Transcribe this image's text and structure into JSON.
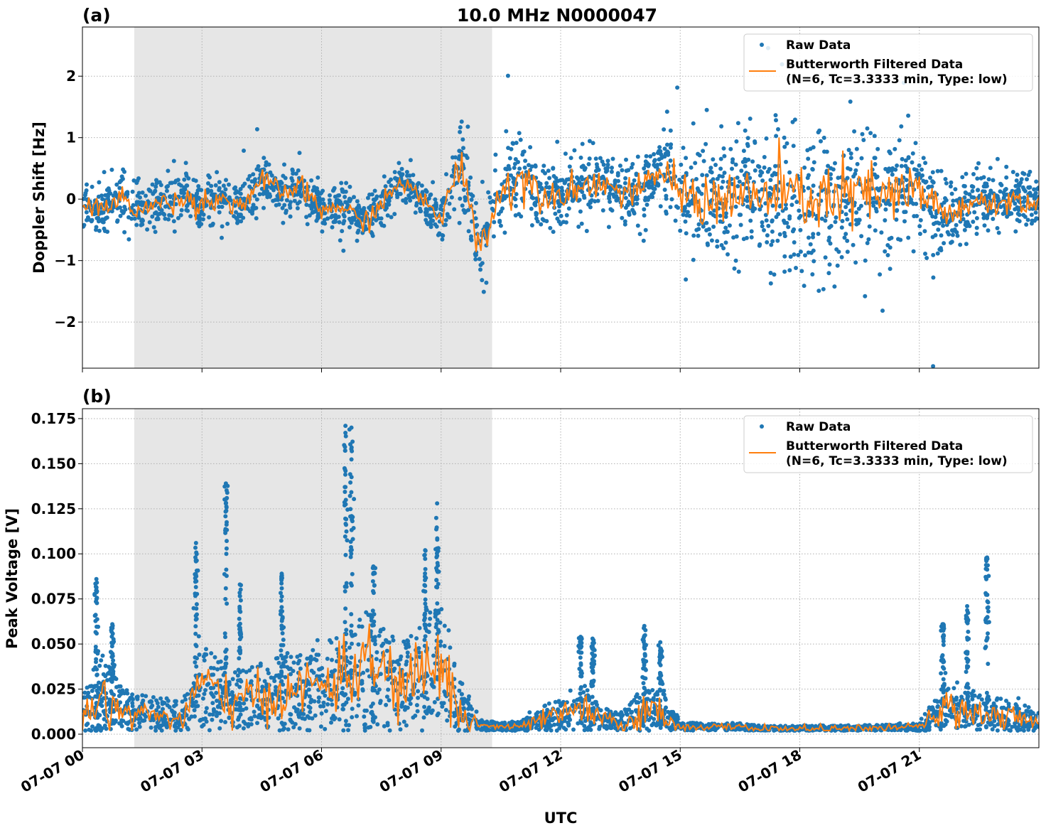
{
  "title": "10.0 MHz N0000047",
  "xlabel": "UTC",
  "x_tick_labels": [
    "07-07 00",
    "07-07 03",
    "07-07 06",
    "07-07 09",
    "07-07 12",
    "07-07 15",
    "07-07 18",
    "07-07 21"
  ],
  "colors": {
    "raw": "#1f77b4",
    "filtered": "#ff7f0e",
    "shade": "#e6e6e6"
  },
  "chart_data": [
    {
      "type": "scatter",
      "panel_label": "(a)",
      "ylabel": "Doppler Shift [Hz]",
      "x_unit": "hours UTC on 07-07",
      "xlim": [
        0,
        24
      ],
      "ylim": [
        -2.75,
        2.8
      ],
      "y_ticks": [
        -2,
        -1,
        0,
        1,
        2
      ],
      "y_tick_labels": [
        "−2",
        "−1",
        "0",
        "1",
        "2"
      ],
      "grid": true,
      "legend_position": "top-right",
      "shaded_interval": [
        1.3,
        10.28
      ],
      "x": [
        0,
        0.5,
        1,
        1.5,
        2,
        2.5,
        3,
        3.5,
        4,
        4.5,
        5,
        5.5,
        6,
        6.5,
        7,
        7.5,
        8,
        8.5,
        9,
        9.5,
        10,
        10.5,
        11,
        11.5,
        12,
        12.5,
        13,
        13.5,
        14,
        14.5,
        15,
        15.5,
        16,
        16.5,
        17,
        17.5,
        18,
        18.5,
        19,
        19.5,
        20,
        20.5,
        21,
        21.5,
        22,
        22.5,
        23,
        23.5,
        24
      ],
      "series": [
        {
          "name": "Butterworth Filtered Data\n(N=6, Tc=3.3333 min, Type: low)",
          "label_line1": "Butterworth Filtered Data",
          "label_line2": "(N=6, Tc=3.3333 min, Type: low)",
          "kind": "line",
          "values": [
            -0.1,
            -0.15,
            0.0,
            -0.2,
            -0.05,
            0.0,
            -0.05,
            0.0,
            -0.1,
            0.3,
            0.1,
            0.2,
            -0.2,
            -0.1,
            -0.4,
            -0.1,
            0.3,
            0.0,
            -0.3,
            0.6,
            -0.8,
            0.1,
            0.4,
            0.1,
            0.1,
            0.2,
            0.3,
            0.1,
            0.1,
            0.5,
            0.1,
            0.0,
            0.0,
            0.05,
            0.0,
            0.1,
            0.0,
            0.05,
            0.0,
            0.1,
            0.0,
            0.1,
            0.05,
            -0.1,
            -0.3,
            0.0,
            -0.1,
            0.0,
            -0.1
          ]
        },
        {
          "name": "Raw Data",
          "kind": "scatter-band",
          "description_values": "approximate half-width of dense raw-data band around filtered value",
          "spread": [
            0.35,
            0.35,
            0.4,
            0.4,
            0.4,
            0.4,
            0.4,
            0.4,
            0.4,
            0.4,
            0.35,
            0.35,
            0.35,
            0.35,
            0.4,
            0.35,
            0.3,
            0.3,
            0.4,
            0.6,
            0.7,
            0.7,
            0.8,
            0.55,
            0.5,
            0.5,
            0.5,
            0.5,
            0.5,
            0.5,
            0.8,
            0.9,
            1.0,
            1.05,
            1.05,
            1.1,
            1.15,
            1.15,
            1.2,
            1.2,
            1.15,
            1.1,
            1.0,
            0.7,
            0.5,
            0.45,
            0.45,
            0.45,
            0.45
          ]
        }
      ]
    },
    {
      "type": "scatter",
      "panel_label": "(b)",
      "ylabel": "Peak Voltage [V]",
      "x_unit": "hours UTC on 07-07",
      "xlim": [
        0,
        24
      ],
      "ylim": [
        -0.0075,
        0.1805
      ],
      "y_ticks": [
        0,
        0.025,
        0.05,
        0.075,
        0.1,
        0.125,
        0.15,
        0.175
      ],
      "y_tick_labels": [
        "0.000",
        "0.025",
        "0.050",
        "0.075",
        "0.100",
        "0.125",
        "0.150",
        "0.175"
      ],
      "grid": true,
      "legend_position": "top-right",
      "shaded_interval": [
        1.3,
        10.28
      ],
      "x": [
        0,
        0.5,
        1,
        1.5,
        2,
        2.5,
        3,
        3.5,
        4,
        4.5,
        5,
        5.5,
        6,
        6.5,
        7,
        7.5,
        8,
        8.5,
        9,
        9.5,
        10,
        10.5,
        11,
        11.5,
        12,
        12.5,
        13,
        13.5,
        14,
        14.5,
        15,
        15.5,
        16,
        16.5,
        17,
        17.5,
        18,
        18.5,
        19,
        19.5,
        20,
        20.5,
        21,
        21.5,
        22,
        22.5,
        23,
        23.5,
        24
      ],
      "series": [
        {
          "name": "Butterworth Filtered Data\n(N=6, Tc=3.3333 min, Type: low)",
          "label_line1": "Butterworth Filtered Data",
          "label_line2": "(N=6, Tc=3.3333 min, Type: low)",
          "kind": "line",
          "values": [
            0.01,
            0.02,
            0.012,
            0.012,
            0.01,
            0.008,
            0.03,
            0.02,
            0.018,
            0.02,
            0.022,
            0.025,
            0.028,
            0.03,
            0.04,
            0.035,
            0.025,
            0.035,
            0.04,
            0.01,
            0.005,
            0.004,
            0.004,
            0.008,
            0.01,
            0.015,
            0.008,
            0.006,
            0.01,
            0.012,
            0.004,
            0.004,
            0.004,
            0.004,
            0.003,
            0.003,
            0.003,
            0.003,
            0.003,
            0.003,
            0.003,
            0.004,
            0.004,
            0.012,
            0.015,
            0.012,
            0.01,
            0.008,
            0.007
          ]
        },
        {
          "name": "Raw Data",
          "kind": "scatter-band",
          "upper": [
            0.025,
            0.045,
            0.025,
            0.022,
            0.02,
            0.018,
            0.05,
            0.04,
            0.035,
            0.04,
            0.045,
            0.045,
            0.05,
            0.055,
            0.07,
            0.065,
            0.05,
            0.065,
            0.075,
            0.03,
            0.008,
            0.007,
            0.007,
            0.015,
            0.02,
            0.03,
            0.015,
            0.012,
            0.025,
            0.03,
            0.007,
            0.006,
            0.006,
            0.006,
            0.005,
            0.005,
            0.005,
            0.005,
            0.005,
            0.005,
            0.005,
            0.006,
            0.007,
            0.025,
            0.03,
            0.025,
            0.02,
            0.018,
            0.014
          ],
          "spikes": [
            [
              0.35,
              0.086
            ],
            [
              0.75,
              0.061
            ],
            [
              2.85,
              0.106
            ],
            [
              3.6,
              0.139
            ],
            [
              3.95,
              0.083
            ],
            [
              5.0,
              0.089
            ],
            [
              6.6,
              0.171
            ],
            [
              6.75,
              0.17
            ],
            [
              7.3,
              0.093
            ],
            [
              8.6,
              0.102
            ],
            [
              8.9,
              0.128
            ],
            [
              12.5,
              0.054
            ],
            [
              12.8,
              0.053
            ],
            [
              14.1,
              0.06
            ],
            [
              14.5,
              0.051
            ],
            [
              21.6,
              0.061
            ],
            [
              22.2,
              0.071
            ],
            [
              22.7,
              0.098
            ]
          ]
        }
      ]
    }
  ],
  "legend": {
    "raw_label": "Raw Data",
    "filtered_line1": "Butterworth Filtered Data",
    "filtered_line2": "(N=6, Tc=3.3333 min, Type: low)"
  }
}
